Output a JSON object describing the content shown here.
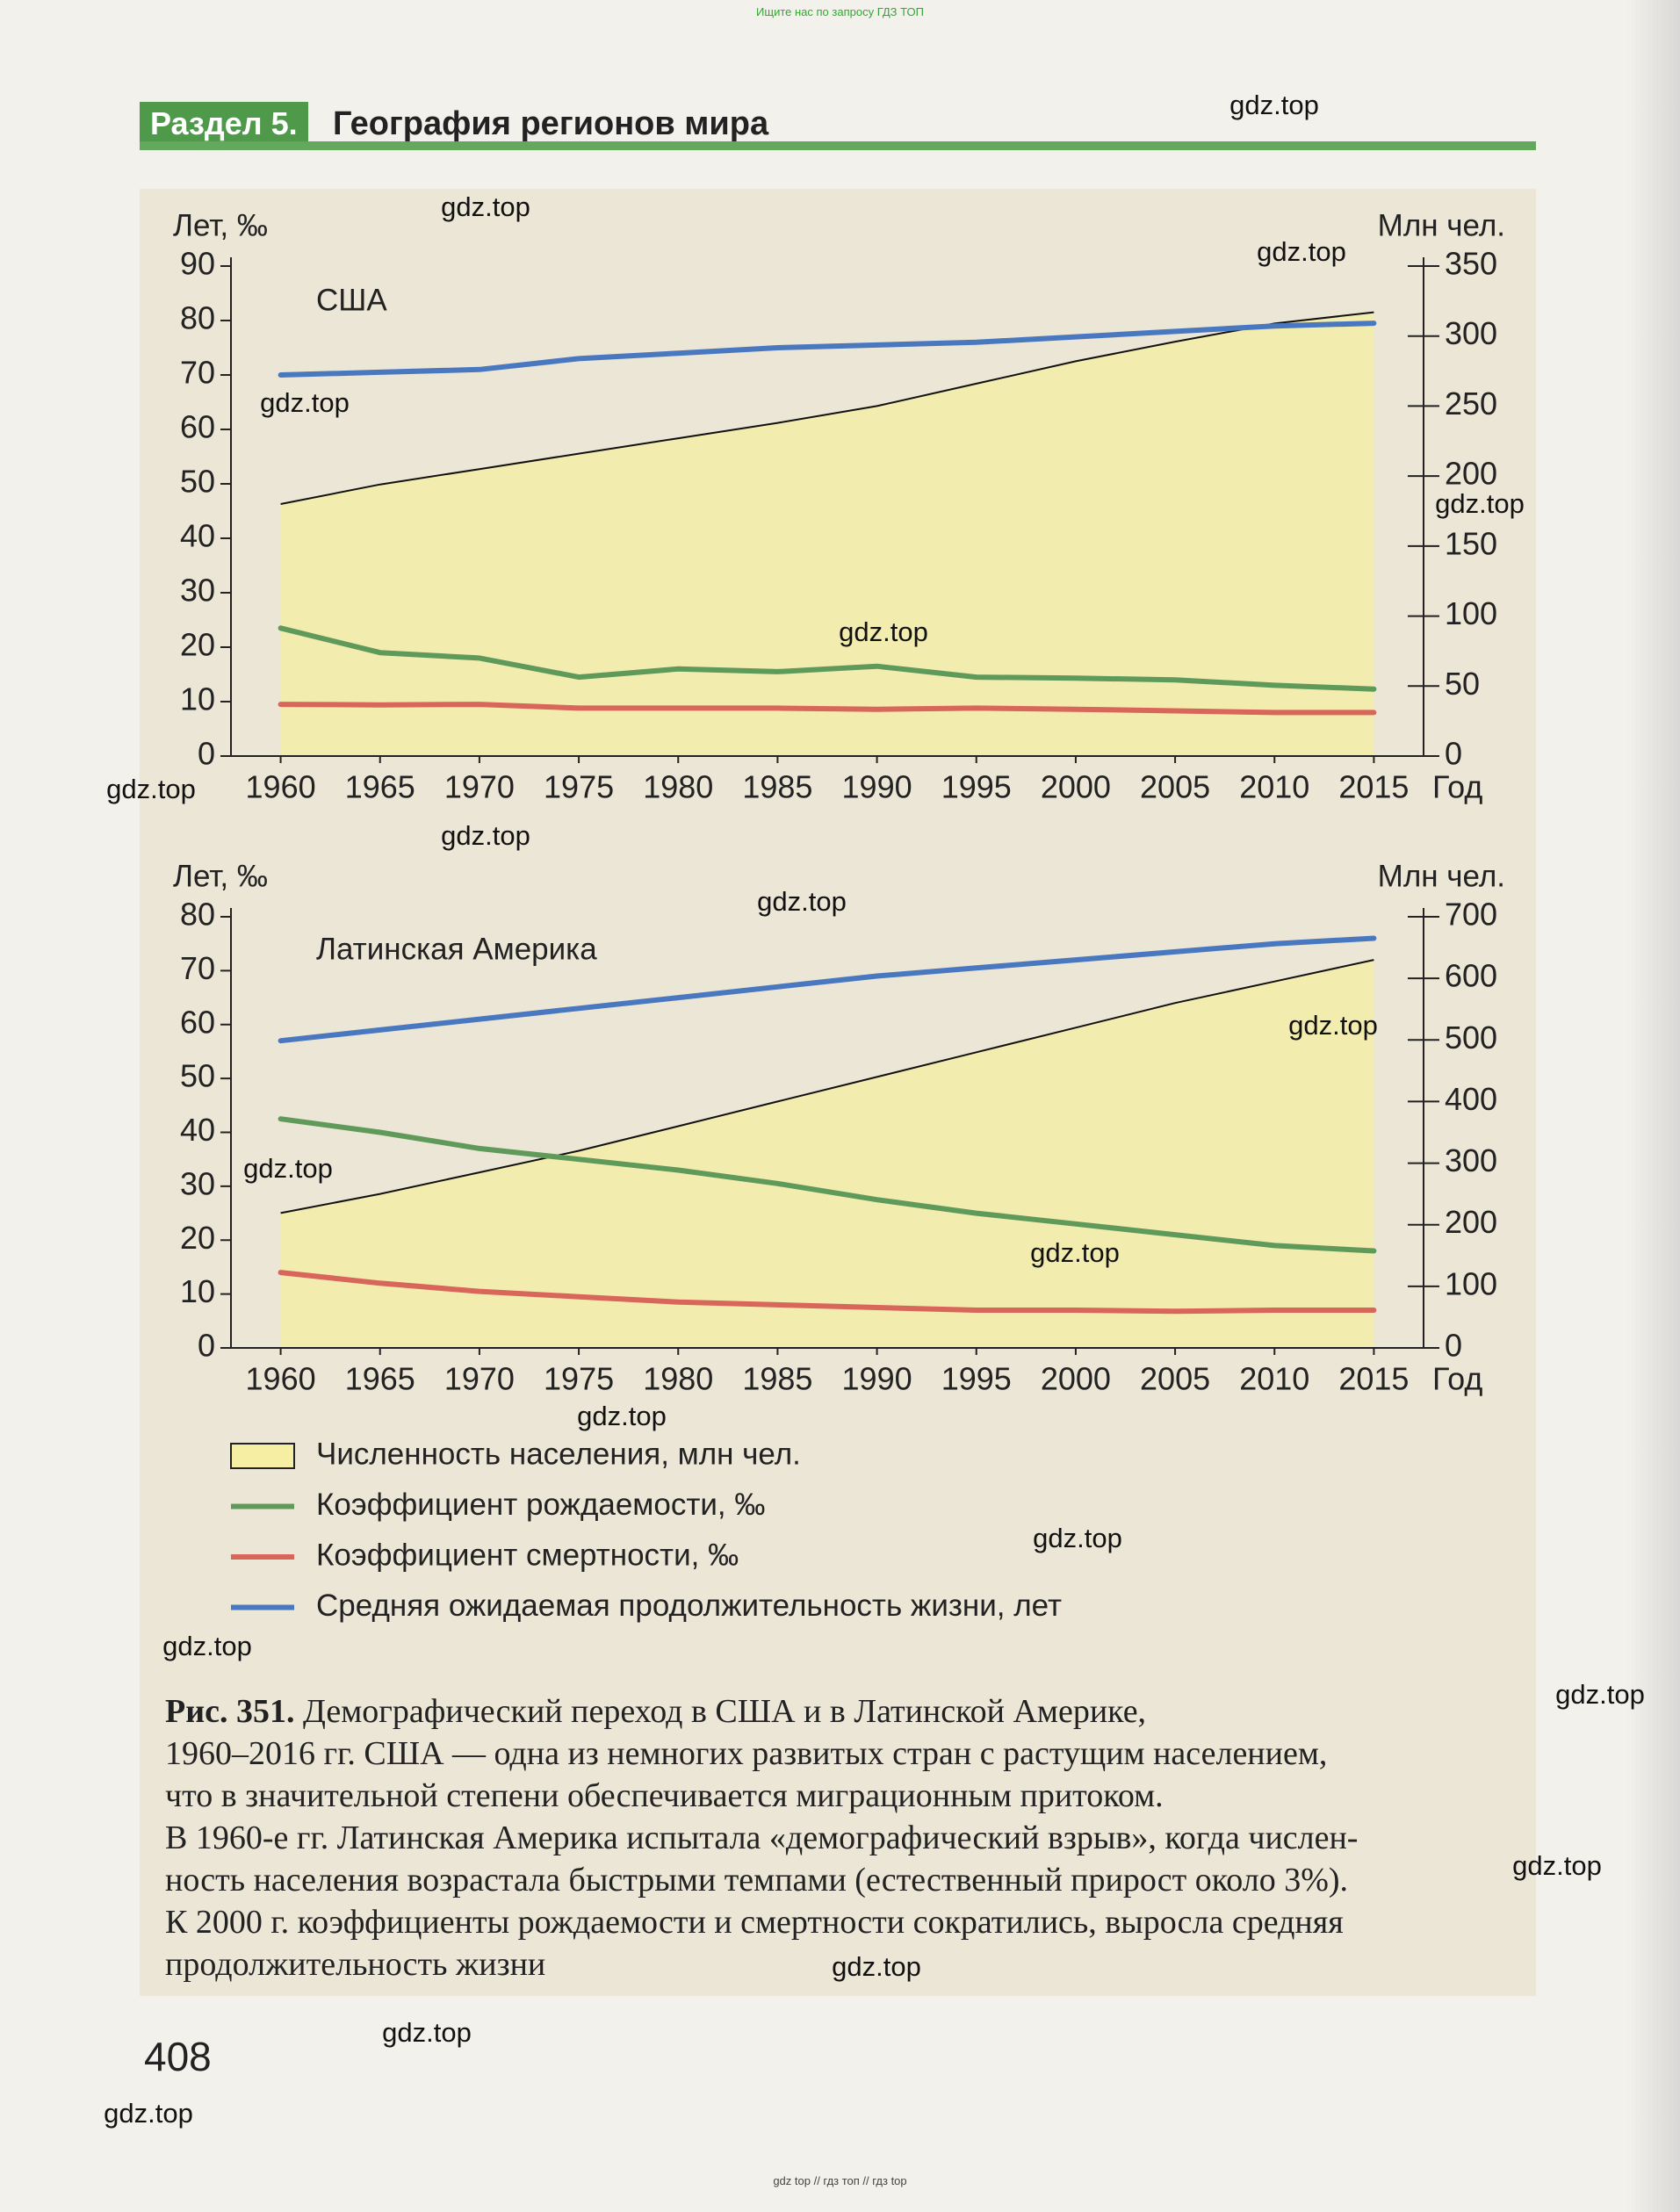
{
  "top_note": "Ищите нас по запросу ГДЗ ТОП",
  "header": {
    "section": "Раздел 5.",
    "title": "География регионов мира"
  },
  "chart_data": [
    {
      "type": "line",
      "title": "США",
      "y_label": "Лет, ‰",
      "y2_label": "Млн чел.",
      "x_label": "Год",
      "x": [
        1960,
        1965,
        1970,
        1975,
        1980,
        1985,
        1990,
        1995,
        2000,
        2005,
        2010,
        2015
      ],
      "xlim": [
        1957.5,
        2017.5
      ],
      "ylim": [
        0,
        90
      ],
      "yticks": [
        0,
        10,
        20,
        30,
        40,
        50,
        60,
        70,
        80,
        90
      ],
      "y2lim": [
        0,
        350
      ],
      "y2ticks": [
        0,
        50,
        100,
        150,
        200,
        250,
        300,
        350
      ],
      "series": [
        {
          "name": "Численность населения, млн чел.",
          "type": "area",
          "axis": "y2",
          "color": "#f6eea2",
          "values": [
            180,
            194,
            205,
            216,
            227,
            238,
            250,
            266,
            282,
            296,
            309,
            317
          ]
        },
        {
          "name": "Коэффициент рождаемости, ‰",
          "color": "#5f9a5a",
          "values": [
            23.5,
            19,
            18,
            14.5,
            16,
            15.5,
            16.5,
            14.5,
            14.3,
            14,
            13,
            12.3
          ]
        },
        {
          "name": "Коэффициент смертности, ‰",
          "color": "#d8665a",
          "values": [
            9.5,
            9.4,
            9.5,
            8.8,
            8.8,
            8.8,
            8.6,
            8.8,
            8.6,
            8.3,
            8.0,
            8.0
          ]
        },
        {
          "name": "Средняя ожидаемая продолжительность жизни, лет",
          "color": "#4a78c0",
          "values": [
            70,
            70.5,
            71,
            73,
            74,
            75,
            75.5,
            76,
            77,
            78,
            79,
            79.5
          ]
        }
      ]
    },
    {
      "type": "line",
      "title": "Латинская Америка",
      "y_label": "Лет, ‰",
      "y2_label": "Млн чел.",
      "x_label": "Год",
      "x": [
        1960,
        1965,
        1970,
        1975,
        1980,
        1985,
        1990,
        1995,
        2000,
        2005,
        2010,
        2015
      ],
      "xlim": [
        1957.5,
        2017.5
      ],
      "ylim": [
        0,
        80
      ],
      "yticks": [
        0,
        10,
        20,
        30,
        40,
        50,
        60,
        70,
        80
      ],
      "y2lim": [
        0,
        700
      ],
      "y2ticks": [
        0,
        100,
        200,
        300,
        400,
        500,
        600,
        700
      ],
      "series": [
        {
          "type": "area",
          "axis": "y2",
          "color": "#f6eea2",
          "values": [
            219,
            250,
            285,
            320,
            360,
            400,
            440,
            480,
            520,
            560,
            595,
            630
          ]
        },
        {
          "color": "#5f9a5a",
          "values": [
            42.5,
            40,
            37,
            35,
            33,
            30.5,
            27.5,
            25,
            23,
            21,
            19,
            18
          ]
        },
        {
          "color": "#d8665a",
          "values": [
            14,
            12,
            10.5,
            9.5,
            8.5,
            8,
            7.5,
            7,
            7,
            6.8,
            7,
            7
          ]
        },
        {
          "color": "#4a78c0",
          "values": [
            57,
            59,
            61,
            63,
            65,
            67,
            69,
            70.5,
            72,
            73.5,
            75,
            76
          ]
        }
      ]
    }
  ],
  "caption": {
    "label": "Рис. 351.",
    "lines": [
      "Демографический переход в США и в Латинской Америке,",
      "1960–2016 гг. США — одна из немногих развитых стран с растущим населением,",
      "что в значительной степени обеспечивается миграционным притоком.",
      "В 1960-е гг. Латинская Америка испытала «демографический взрыв», когда числен-",
      "ность населения возрастала быстрыми темпами (естественный прирост около 3%).",
      "К 2000 г. коэффициенты рождаемости и смертности сократились, выросла средняя",
      "продолжительность жизни"
    ]
  },
  "page_number": "408",
  "watermarks": [
    "gdz.top",
    "gdz.top",
    "gdz.top",
    "gdz.top",
    "gdz.top",
    "gdz.top",
    "gdz.top",
    "gdz.top",
    "gdz.top",
    "gdz.top",
    "gdz.top",
    "gdz.top",
    "gdz.top",
    "gdz.top",
    "gdz.top",
    "gdz.top",
    "gdz.top",
    "gdz.top",
    "gdz.top",
    "gdz.top"
  ],
  "bottom_note": "gdz top // гдз топ // гдз top"
}
